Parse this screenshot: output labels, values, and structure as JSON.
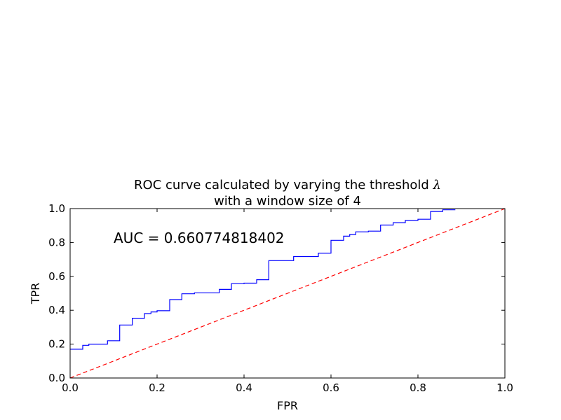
{
  "chart_data": {
    "type": "line",
    "title_line1": "ROC curve calculated by varying the threshold ",
    "title_symbol": "λ",
    "title_line2": "with a window size of 4",
    "xlabel": "FPR",
    "ylabel": "TPR",
    "xlim": [
      0.0,
      1.0
    ],
    "ylim": [
      0.0,
      1.0
    ],
    "xticks": [
      "0.0",
      "0.2",
      "0.4",
      "0.6",
      "0.8",
      "1.0"
    ],
    "yticks": [
      "0.0",
      "0.2",
      "0.4",
      "0.6",
      "0.8",
      "1.0"
    ],
    "annotation": "AUC = 0.660774818402",
    "grid": false,
    "series": [
      {
        "style": "step",
        "color": "#0000ff",
        "points": [
          [
            0.0,
            0.17
          ],
          [
            0.029,
            0.17
          ],
          [
            0.029,
            0.193
          ],
          [
            0.043,
            0.193
          ],
          [
            0.043,
            0.2
          ],
          [
            0.086,
            0.2
          ],
          [
            0.086,
            0.22
          ],
          [
            0.114,
            0.22
          ],
          [
            0.114,
            0.313
          ],
          [
            0.143,
            0.313
          ],
          [
            0.143,
            0.353
          ],
          [
            0.171,
            0.353
          ],
          [
            0.171,
            0.38
          ],
          [
            0.186,
            0.38
          ],
          [
            0.186,
            0.39
          ],
          [
            0.2,
            0.39
          ],
          [
            0.2,
            0.397
          ],
          [
            0.229,
            0.397
          ],
          [
            0.229,
            0.463
          ],
          [
            0.257,
            0.463
          ],
          [
            0.257,
            0.497
          ],
          [
            0.286,
            0.497
          ],
          [
            0.286,
            0.503
          ],
          [
            0.343,
            0.503
          ],
          [
            0.343,
            0.523
          ],
          [
            0.371,
            0.523
          ],
          [
            0.371,
            0.557
          ],
          [
            0.4,
            0.557
          ],
          [
            0.4,
            0.56
          ],
          [
            0.429,
            0.56
          ],
          [
            0.429,
            0.58
          ],
          [
            0.457,
            0.58
          ],
          [
            0.457,
            0.693
          ],
          [
            0.514,
            0.693
          ],
          [
            0.514,
            0.717
          ],
          [
            0.571,
            0.717
          ],
          [
            0.571,
            0.737
          ],
          [
            0.6,
            0.737
          ],
          [
            0.6,
            0.813
          ],
          [
            0.629,
            0.813
          ],
          [
            0.629,
            0.837
          ],
          [
            0.643,
            0.837
          ],
          [
            0.643,
            0.847
          ],
          [
            0.657,
            0.847
          ],
          [
            0.657,
            0.863
          ],
          [
            0.686,
            0.863
          ],
          [
            0.686,
            0.867
          ],
          [
            0.714,
            0.867
          ],
          [
            0.714,
            0.903
          ],
          [
            0.743,
            0.903
          ],
          [
            0.743,
            0.917
          ],
          [
            0.771,
            0.917
          ],
          [
            0.771,
            0.93
          ],
          [
            0.8,
            0.93
          ],
          [
            0.8,
            0.937
          ],
          [
            0.829,
            0.937
          ],
          [
            0.829,
            0.983
          ],
          [
            0.857,
            0.983
          ],
          [
            0.857,
            0.993
          ],
          [
            0.886,
            0.993
          ]
        ]
      },
      {
        "style": "dashed",
        "color": "#ff0000",
        "points": [
          [
            0.0,
            0.0
          ],
          [
            1.0,
            1.0
          ]
        ]
      }
    ]
  }
}
